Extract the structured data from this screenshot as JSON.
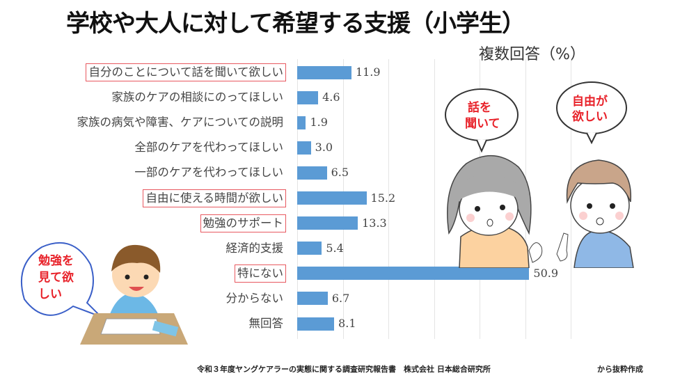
{
  "title": "学校や大人に対して希望する支援（小学生）",
  "subtitle": "複数回答（%）",
  "footer": {
    "source": "令和３年度ヤングケアラーの実態に関する調査研究報告書　株式会社 日本総合研究所",
    "suffix": "から抜粋作成"
  },
  "bubbles": {
    "girl": [
      "話を",
      "聞いて"
    ],
    "boy": [
      "自由が",
      "欲しい"
    ],
    "student": [
      "勉強を",
      "見て欲",
      "しい"
    ]
  },
  "colors": {
    "bar": "#5b9bd5",
    "highlight_box": "#e8585f",
    "bubble_text": "#e8222a"
  },
  "chart_data": {
    "type": "bar",
    "orientation": "horizontal",
    "title": "学校や大人に対して希望する支援（小学生）",
    "unit_label": "複数回答（%）",
    "categories": [
      "自分のことについて話を聞いて欲しい",
      "家族のケアの相談にのってほしい",
      "家族の病気や障害、ケアについての説明",
      "全部のケアを代わってほしい",
      "一部のケアを代わってほしい",
      "自由に使える時間が欲しい",
      "勉強のサポート",
      "経済的支援",
      "特にない",
      "分からない",
      "無回答"
    ],
    "values": [
      11.9,
      4.6,
      1.9,
      3.0,
      6.5,
      15.2,
      13.3,
      5.4,
      50.9,
      6.7,
      8.1
    ],
    "value_labels": [
      "11.9",
      "4.6",
      "1.9",
      "3.0",
      "6.5",
      "15.2",
      "13.3",
      "5.4",
      "50.9",
      "6.7",
      "8.1"
    ],
    "highlighted": [
      true,
      false,
      false,
      false,
      false,
      true,
      true,
      false,
      true,
      false,
      false
    ],
    "xlim": [
      0,
      60
    ],
    "grid_step": 10,
    "grid": true,
    "legend": "none"
  }
}
